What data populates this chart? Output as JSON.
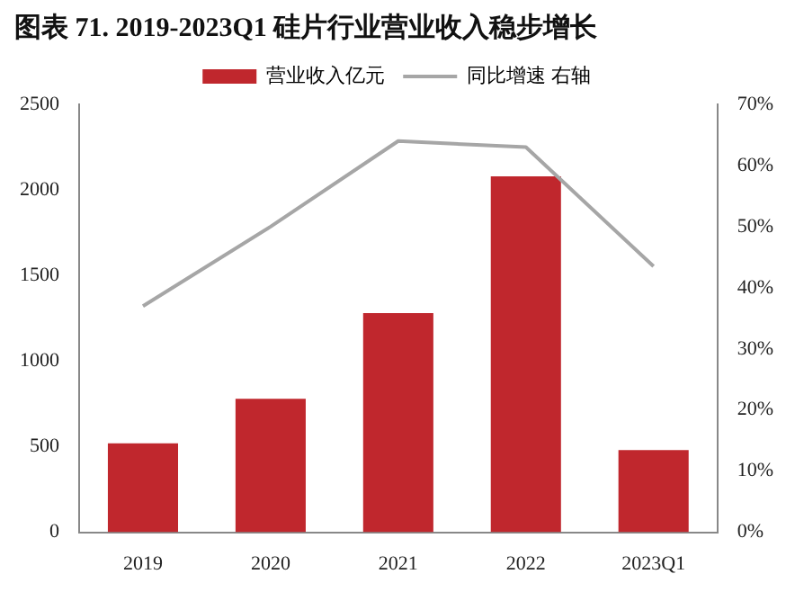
{
  "chart_data": {
    "type": "bar",
    "title": "图表 71. 2019-2023Q1 硅片行业营业收入稳步增长",
    "categories": [
      "2019",
      "2020",
      "2021",
      "2022",
      "2023Q1"
    ],
    "series": [
      {
        "name": "营业收入亿元",
        "color": "#c0272d",
        "values": [
          520,
          780,
          1280,
          2080,
          480
        ]
      },
      {
        "name": "同比增速 右轴",
        "type": "line",
        "axis": "y2",
        "color": "#a6a6a6",
        "marker": "none",
        "values": [
          37,
          50,
          64,
          63,
          43.5
        ]
      }
    ],
    "ylim": [
      0,
      2500
    ],
    "yticks": [
      0,
      500,
      1000,
      1500,
      2000,
      2500
    ],
    "y2lim": [
      0,
      70
    ],
    "y2ticks": [
      {
        "value": 0,
        "label": "0%"
      },
      {
        "value": 10,
        "label": "10%"
      },
      {
        "value": 20,
        "label": "20%"
      },
      {
        "value": 30,
        "label": "30%"
      },
      {
        "value": 40,
        "label": "40%"
      },
      {
        "value": 50,
        "label": "50%"
      },
      {
        "value": 60,
        "label": "60%"
      },
      {
        "value": 70,
        "label": "70%"
      }
    ],
    "grid": false,
    "legend": "top"
  }
}
